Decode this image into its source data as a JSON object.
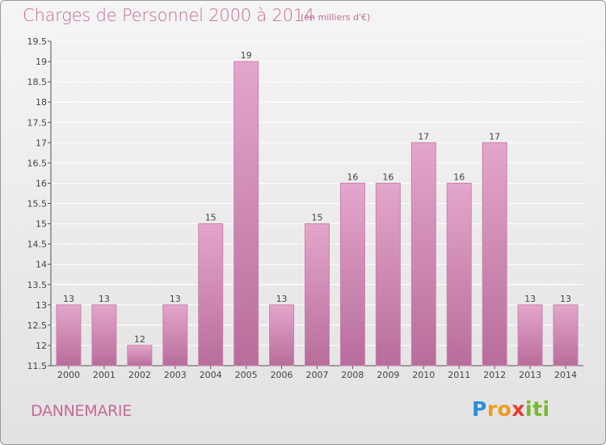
{
  "chart_title": "Charges de Personnel 2000 à 2014",
  "chart_subtitle": "(en milliers d'€)",
  "commune": "DANNEMARIE",
  "brand": "Proxiti",
  "colors": {
    "bar_fill_top": "#e4a6cb",
    "bar_fill_bottom": "#b86d9b",
    "bar_stroke": "#c983ad",
    "text_accent": "#c46a97",
    "grid": "#ffffff"
  },
  "chart_data": {
    "type": "bar",
    "title": "Charges de Personnel 2000 à 2014",
    "subtitle": "(en milliers d'€)",
    "xlabel": "",
    "ylabel": "",
    "categories": [
      "2000",
      "2001",
      "2002",
      "2003",
      "2004",
      "2005",
      "2006",
      "2007",
      "2008",
      "2009",
      "2010",
      "2011",
      "2012",
      "2013",
      "2014"
    ],
    "values": [
      13,
      13,
      12,
      13,
      15,
      19,
      13,
      15,
      16,
      16,
      17,
      16,
      17,
      13,
      13
    ],
    "data_labels": [
      "13",
      "13",
      "12",
      "13",
      "15",
      "19",
      "13",
      "15",
      "16",
      "16",
      "17",
      "16",
      "17",
      "13",
      "13"
    ],
    "ylim": [
      11.5,
      19.5
    ],
    "yticks": [
      "11.5",
      "12",
      "12.5",
      "13",
      "13.5",
      "14",
      "14.5",
      "15",
      "15.5",
      "16",
      "16.5",
      "17",
      "17.5",
      "18",
      "18.5",
      "19",
      "19.5"
    ],
    "grid": true
  }
}
